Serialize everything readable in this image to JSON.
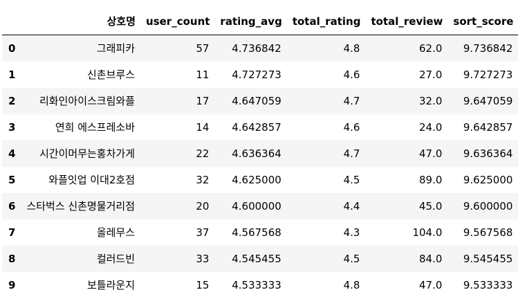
{
  "table": {
    "columns": {
      "index": "",
      "name": "상호명",
      "user_count": "user_count",
      "rating_avg": "rating_avg",
      "total_rating": "total_rating",
      "total_review": "total_review",
      "sort_score": "sort_score"
    },
    "rows": [
      {
        "index": "0",
        "name": "그래피카",
        "user_count": "57",
        "rating_avg": "4.736842",
        "total_rating": "4.8",
        "total_review": "62.0",
        "sort_score": "9.736842"
      },
      {
        "index": "1",
        "name": "신촌브루스",
        "user_count": "11",
        "rating_avg": "4.727273",
        "total_rating": "4.6",
        "total_review": "27.0",
        "sort_score": "9.727273"
      },
      {
        "index": "2",
        "name": "리화인아이스크림와플",
        "user_count": "17",
        "rating_avg": "4.647059",
        "total_rating": "4.7",
        "total_review": "32.0",
        "sort_score": "9.647059"
      },
      {
        "index": "3",
        "name": "연희 에스프레소바",
        "user_count": "14",
        "rating_avg": "4.642857",
        "total_rating": "4.6",
        "total_review": "24.0",
        "sort_score": "9.642857"
      },
      {
        "index": "4",
        "name": "시간이머무는홍차가게",
        "user_count": "22",
        "rating_avg": "4.636364",
        "total_rating": "4.7",
        "total_review": "47.0",
        "sort_score": "9.636364"
      },
      {
        "index": "5",
        "name": "와플잇업 이대2호점",
        "user_count": "32",
        "rating_avg": "4.625000",
        "total_rating": "4.5",
        "total_review": "89.0",
        "sort_score": "9.625000"
      },
      {
        "index": "6",
        "name": "스타벅스 신촌명물거리점",
        "user_count": "20",
        "rating_avg": "4.600000",
        "total_rating": "4.4",
        "total_review": "45.0",
        "sort_score": "9.600000"
      },
      {
        "index": "7",
        "name": "올레무스",
        "user_count": "37",
        "rating_avg": "4.567568",
        "total_rating": "4.3",
        "total_review": "104.0",
        "sort_score": "9.567568"
      },
      {
        "index": "8",
        "name": "컬러드빈",
        "user_count": "33",
        "rating_avg": "4.545455",
        "total_rating": "4.5",
        "total_review": "84.0",
        "sort_score": "9.545455"
      },
      {
        "index": "9",
        "name": "보틀라운지",
        "user_count": "15",
        "rating_avg": "4.533333",
        "total_rating": "4.8",
        "total_review": "47.0",
        "sort_score": "9.533333"
      }
    ]
  }
}
